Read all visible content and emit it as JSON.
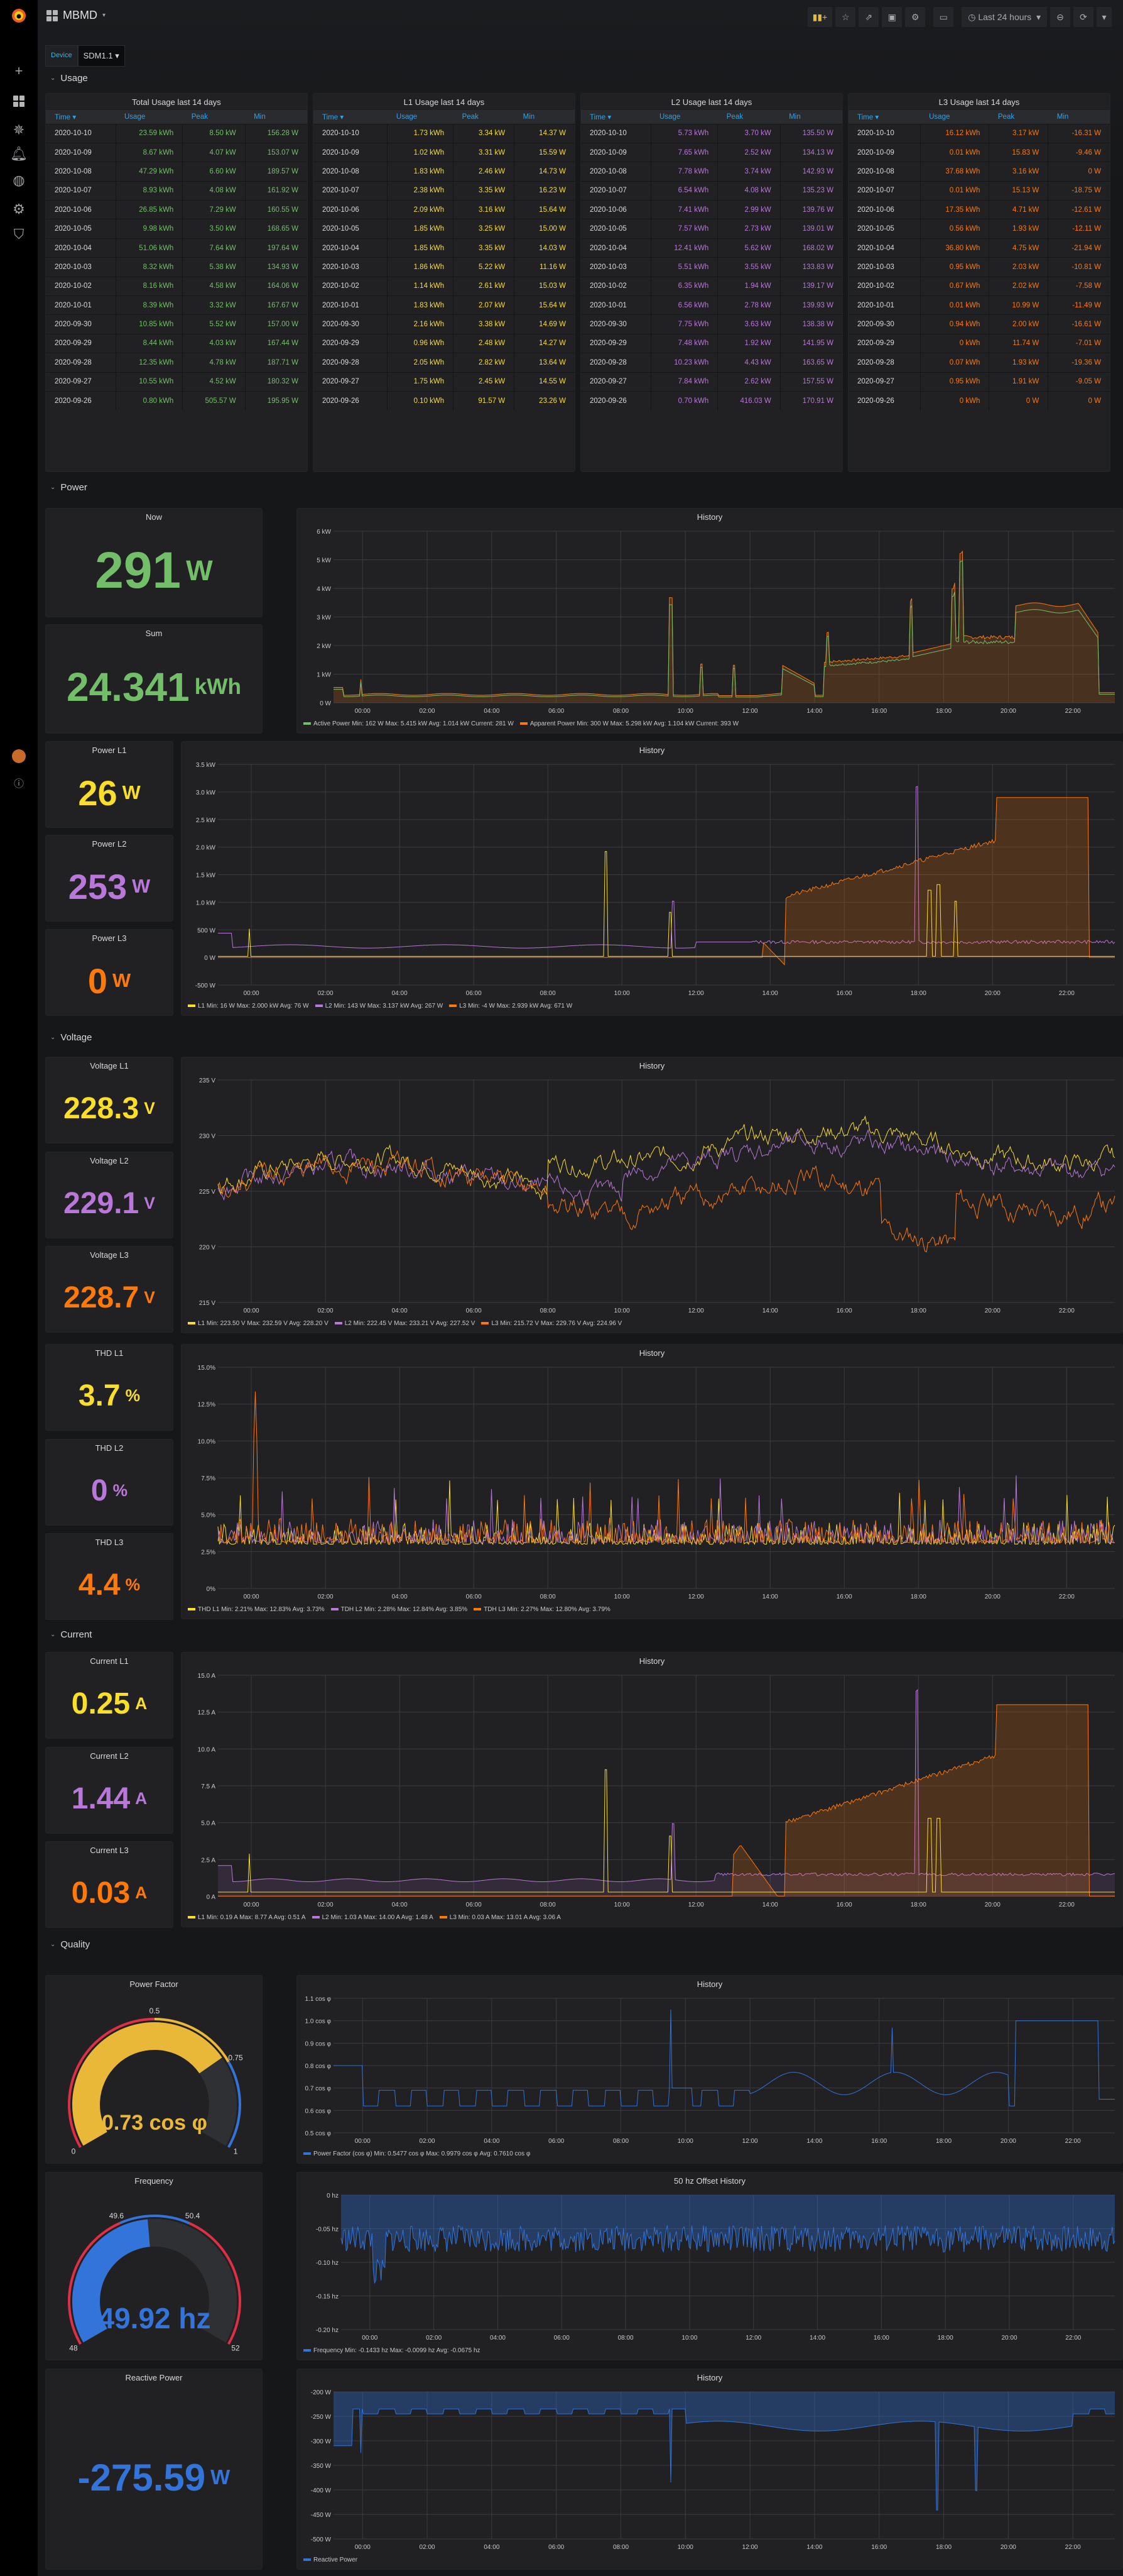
{
  "colors": {
    "green": "#73bf69",
    "yellow": "#fade2a",
    "purple": "#b877d9",
    "orange": "#ff780a",
    "blue": "#3274d9",
    "red": "#e02f44",
    "gauge_yellow": "#eab839"
  },
  "sidebar": {
    "icons": [
      "grafana-logo-icon",
      "plus-icon",
      "dashboards-icon",
      "explore-icon",
      "alert-bell-icon",
      "globe-icon",
      "gear-icon",
      "shield-icon",
      "user-avatar-icon",
      "help-icon"
    ]
  },
  "header": {
    "title": "MBMD",
    "time_range": "Last 24 hours"
  },
  "variables": {
    "device_label": "Device",
    "device_value": "SDM1.1"
  },
  "rows": {
    "usage": "Usage",
    "power": "Power",
    "voltage": "Voltage",
    "current": "Current",
    "quality": "Quality"
  },
  "tables": [
    {
      "title": "Total Usage last 14 days",
      "columns": [
        "Time",
        "Usage",
        "Peak",
        "Min"
      ],
      "rows": [
        [
          "2020-10-10",
          "23.59 kWh",
          "8.50 kW",
          "156.28 W"
        ],
        [
          "2020-10-09",
          "8.67 kWh",
          "4.07 kW",
          "153.07 W"
        ],
        [
          "2020-10-08",
          "47.29 kWh",
          "6.60 kW",
          "189.57 W"
        ],
        [
          "2020-10-07",
          "8.93 kWh",
          "4.08 kW",
          "161.92 W"
        ],
        [
          "2020-10-06",
          "26.85 kWh",
          "7.29 kW",
          "160.55 W"
        ],
        [
          "2020-10-05",
          "9.98 kWh",
          "3.50 kW",
          "168.65 W"
        ],
        [
          "2020-10-04",
          "51.06 kWh",
          "7.64 kW",
          "197.64 W"
        ],
        [
          "2020-10-03",
          "8.32 kWh",
          "5.38 kW",
          "134.93 W"
        ],
        [
          "2020-10-02",
          "8.16 kWh",
          "4.58 kW",
          "164.06 W"
        ],
        [
          "2020-10-01",
          "8.39 kWh",
          "3.32 kW",
          "167.67 W"
        ],
        [
          "2020-09-30",
          "10.85 kWh",
          "5.52 kW",
          "157.00 W"
        ],
        [
          "2020-09-29",
          "8.44 kWh",
          "4.03 kW",
          "167.44 W"
        ],
        [
          "2020-09-28",
          "12.35 kWh",
          "4.78 kW",
          "187.71 W"
        ],
        [
          "2020-09-27",
          "10.55 kWh",
          "4.52 kW",
          "180.32 W"
        ],
        [
          "2020-09-26",
          "0.80 kWh",
          "505.57 W",
          "195.95 W"
        ]
      ]
    },
    {
      "title": "L1 Usage last 14 days",
      "columns": [
        "Time",
        "Usage",
        "Peak",
        "Min"
      ],
      "rows": [
        [
          "2020-10-10",
          "1.73 kWh",
          "3.34 kW",
          "14.37 W"
        ],
        [
          "2020-10-09",
          "1.02 kWh",
          "3.31 kW",
          "15.59 W"
        ],
        [
          "2020-10-08",
          "1.83 kWh",
          "2.46 kW",
          "14.73 W"
        ],
        [
          "2020-10-07",
          "2.38 kWh",
          "3.35 kW",
          "16.23 W"
        ],
        [
          "2020-10-06",
          "2.09 kWh",
          "3.16 kW",
          "15.64 W"
        ],
        [
          "2020-10-05",
          "1.85 kWh",
          "3.25 kW",
          "15.00 W"
        ],
        [
          "2020-10-04",
          "1.85 kWh",
          "3.35 kW",
          "14.03 W"
        ],
        [
          "2020-10-03",
          "1.86 kWh",
          "5.22 kW",
          "11.16 W"
        ],
        [
          "2020-10-02",
          "1.14 kWh",
          "2.61 kW",
          "15.03 W"
        ],
        [
          "2020-10-01",
          "1.83 kWh",
          "2.07 kW",
          "15.64 W"
        ],
        [
          "2020-09-30",
          "2.16 kWh",
          "3.38 kW",
          "14.69 W"
        ],
        [
          "2020-09-29",
          "0.96 kWh",
          "2.48 kW",
          "14.27 W"
        ],
        [
          "2020-09-28",
          "2.05 kWh",
          "2.82 kW",
          "13.64 W"
        ],
        [
          "2020-09-27",
          "1.75 kWh",
          "2.45 kW",
          "14.55 W"
        ],
        [
          "2020-09-26",
          "0.10 kWh",
          "91.57 W",
          "23.26 W"
        ]
      ]
    },
    {
      "title": "L2 Usage last 14 days",
      "columns": [
        "Time",
        "Usage",
        "Peak",
        "Min"
      ],
      "rows": [
        [
          "2020-10-10",
          "5.73 kWh",
          "3.70 kW",
          "135.50 W"
        ],
        [
          "2020-10-09",
          "7.65 kWh",
          "2.52 kW",
          "134.13 W"
        ],
        [
          "2020-10-08",
          "7.78 kWh",
          "3.74 kW",
          "142.93 W"
        ],
        [
          "2020-10-07",
          "6.54 kWh",
          "4.08 kW",
          "135.23 W"
        ],
        [
          "2020-10-06",
          "7.41 kWh",
          "2.99 kW",
          "139.76 W"
        ],
        [
          "2020-10-05",
          "7.57 kWh",
          "2.73 kW",
          "139.01 W"
        ],
        [
          "2020-10-04",
          "12.41 kWh",
          "5.62 kW",
          "168.02 W"
        ],
        [
          "2020-10-03",
          "5.51 kWh",
          "3.55 kW",
          "133.83 W"
        ],
        [
          "2020-10-02",
          "6.35 kWh",
          "1.94 kW",
          "139.17 W"
        ],
        [
          "2020-10-01",
          "6.56 kWh",
          "2.78 kW",
          "139.93 W"
        ],
        [
          "2020-09-30",
          "7.75 kWh",
          "3.63 kW",
          "138.38 W"
        ],
        [
          "2020-09-29",
          "7.48 kWh",
          "1.92 kW",
          "141.95 W"
        ],
        [
          "2020-09-28",
          "10.23 kWh",
          "4.43 kW",
          "163.65 W"
        ],
        [
          "2020-09-27",
          "7.84 kWh",
          "2.62 kW",
          "157.55 W"
        ],
        [
          "2020-09-26",
          "0.70 kWh",
          "416.03 W",
          "170.91 W"
        ]
      ]
    },
    {
      "title": "L3 Usage last 14 days",
      "columns": [
        "Time",
        "Usage",
        "Peak",
        "Min"
      ],
      "rows": [
        [
          "2020-10-10",
          "16.12 kWh",
          "3.17 kW",
          "-16.31 W"
        ],
        [
          "2020-10-09",
          "0.01 kWh",
          "15.83 W",
          "-9.46 W"
        ],
        [
          "2020-10-08",
          "37.68 kWh",
          "3.16 kW",
          "0 W"
        ],
        [
          "2020-10-07",
          "0.01 kWh",
          "15.13 W",
          "-18.75 W"
        ],
        [
          "2020-10-06",
          "17.35 kWh",
          "4.71 kW",
          "-12.61 W"
        ],
        [
          "2020-10-05",
          "0.56 kWh",
          "1.93 kW",
          "-12.11 W"
        ],
        [
          "2020-10-04",
          "36.80 kWh",
          "4.75 kW",
          "-21.94 W"
        ],
        [
          "2020-10-03",
          "0.95 kWh",
          "2.03 kW",
          "-10.81 W"
        ],
        [
          "2020-10-02",
          "0.67 kWh",
          "2.02 kW",
          "-7.58 W"
        ],
        [
          "2020-10-01",
          "0.01 kWh",
          "10.99 W",
          "-11.49 W"
        ],
        [
          "2020-09-30",
          "0.94 kWh",
          "2.00 kW",
          "-16.61 W"
        ],
        [
          "2020-09-29",
          "0 kWh",
          "11.74 W",
          "-7.01 W"
        ],
        [
          "2020-09-28",
          "0.07 kWh",
          "1.93 kW",
          "-19.36 W"
        ],
        [
          "2020-09-27",
          "0.95 kWh",
          "1.91 kW",
          "-9.05 W"
        ],
        [
          "2020-09-26",
          "0 kWh",
          "0 W",
          "0 W"
        ]
      ]
    }
  ],
  "stats": {
    "now": {
      "title": "Now",
      "value": "291",
      "unit": "W"
    },
    "sum": {
      "title": "Sum",
      "value": "24.341",
      "unit": "kWh"
    },
    "power_l1": {
      "title": "Power L1",
      "value": "26",
      "unit": "W"
    },
    "power_l2": {
      "title": "Power L2",
      "value": "253",
      "unit": "W"
    },
    "power_l3": {
      "title": "Power L3",
      "value": "0",
      "unit": "W"
    },
    "voltage_l1": {
      "title": "Voltage L1",
      "value": "228.3",
      "unit": "V"
    },
    "voltage_l2": {
      "title": "Voltage L2",
      "value": "229.1",
      "unit": "V"
    },
    "voltage_l3": {
      "title": "Voltage L3",
      "value": "228.7",
      "unit": "V"
    },
    "thd_l1": {
      "title": "THD L1",
      "value": "3.7",
      "unit": "%"
    },
    "thd_l2": {
      "title": "THD L2",
      "value": "0",
      "unit": "%"
    },
    "thd_l3": {
      "title": "THD L3",
      "value": "4.4",
      "unit": "%"
    },
    "current_l1": {
      "title": "Current L1",
      "value": "0.25",
      "unit": "A"
    },
    "current_l2": {
      "title": "Current L2",
      "value": "1.44",
      "unit": "A"
    },
    "current_l3": {
      "title": "Current L3",
      "value": "0.03",
      "unit": "A"
    },
    "reactive": {
      "title": "Reactive Power",
      "value": "-275.59",
      "unit": "W"
    }
  },
  "gauges": {
    "pf": {
      "title": "Power Factor",
      "value": 0.73,
      "display": "0.73 cos φ",
      "min": 0,
      "max": 1,
      "ticks": [
        "0",
        "0.5",
        "0.75",
        "1"
      ]
    },
    "freq": {
      "title": "Frequency",
      "value": 49.92,
      "display": "49.92 hz",
      "min": 48,
      "max": 52,
      "ticks": [
        "48",
        "49.6",
        "50.4",
        "52"
      ]
    }
  },
  "x_ticks": [
    "00:00",
    "02:00",
    "04:00",
    "06:00",
    "08:00",
    "10:00",
    "12:00",
    "14:00",
    "16:00",
    "18:00",
    "20:00",
    "22:00"
  ],
  "charts": {
    "power_history": {
      "title": "History",
      "yticks": [
        "0 W",
        "1 kW",
        "2 kW",
        "3 kW",
        "4 kW",
        "5 kW",
        "6 kW"
      ],
      "legend": [
        {
          "label": "Active Power  Min: 162 W  Max: 5.415 kW  Avg: 1.014 kW  Current: 281 W",
          "color": "#73bf69"
        },
        {
          "label": "Apparent Power  Min: 300 W  Max: 5.298 kW  Avg: 1.104 kW  Current: 393 W",
          "color": "#ff780a"
        }
      ]
    },
    "phase_power": {
      "title": "History",
      "yticks": [
        "-500 W",
        "0 W",
        "500 W",
        "1.0 kW",
        "1.5 kW",
        "2.0 kW",
        "2.5 kW",
        "3.0 kW",
        "3.5 kW"
      ],
      "legend": [
        {
          "label": "L1  Min: 16 W  Max: 2.000 kW  Avg: 76 W",
          "color": "#fade2a"
        },
        {
          "label": "L2  Min: 143 W  Max: 3.137 kW  Avg: 267 W",
          "color": "#b877d9"
        },
        {
          "label": "L3  Min: -4 W  Max: 2.939 kW  Avg: 671 W",
          "color": "#ff780a"
        }
      ]
    },
    "voltage": {
      "title": "History",
      "yticks": [
        "215 V",
        "220 V",
        "225 V",
        "230 V",
        "235 V"
      ],
      "legend": [
        {
          "label": "L1  Min: 223.50 V  Max: 232.59 V  Avg: 228.20 V",
          "color": "#fade2a"
        },
        {
          "label": "L2  Min: 222.45 V  Max: 233.21 V  Avg: 227.52 V",
          "color": "#b877d9"
        },
        {
          "label": "L3  Min: 215.72 V  Max: 229.76 V  Avg: 224.96 V",
          "color": "#ff780a"
        }
      ]
    },
    "thd": {
      "title": "History",
      "yticks": [
        "0%",
        "2.5%",
        "5.0%",
        "7.5%",
        "10.0%",
        "12.5%",
        "15.0%"
      ],
      "legend": [
        {
          "label": "THD L1  Min: 2.21%  Max: 12.83%  Avg: 3.73%",
          "color": "#fade2a"
        },
        {
          "label": "TDH L2  Min: 2.28%  Max: 12.84%  Avg: 3.85%",
          "color": "#b877d9"
        },
        {
          "label": "TDH L3  Min: 2.27%  Max: 12.80%  Avg: 3.79%",
          "color": "#ff780a"
        }
      ]
    },
    "current": {
      "title": "History",
      "yticks": [
        "0 A",
        "2.5 A",
        "5.0 A",
        "7.5 A",
        "10.0 A",
        "12.5 A",
        "15.0 A"
      ],
      "legend": [
        {
          "label": "L1  Min: 0.19 A  Max: 8.77 A  Avg: 0.51 A",
          "color": "#fade2a"
        },
        {
          "label": "L2  Min: 1.03 A  Max: 14.00 A  Avg: 1.48 A",
          "color": "#b877d9"
        },
        {
          "label": "L3  Min: 0.03 A  Max: 13.01 A  Avg: 3.06 A",
          "color": "#ff780a"
        }
      ]
    },
    "pf": {
      "title": "History",
      "yticks": [
        "0.5 cos φ",
        "0.6 cos φ",
        "0.7 cos φ",
        "0.8 cos φ",
        "0.9 cos φ",
        "1.0 cos φ",
        "1.1 cos φ"
      ],
      "legend": [
        {
          "label": "Power Factor (cos φ)  Min: 0.5477 cos φ  Max: 0.9979 cos φ  Avg: 0.7610 cos φ",
          "color": "#3274d9"
        }
      ]
    },
    "freq": {
      "title": "50 hz Offset History",
      "yticks": [
        "-0.20 hz",
        "-0.15 hz",
        "-0.10 hz",
        "-0.05 hz",
        "0 hz"
      ],
      "legend": [
        {
          "label": "Frequency  Min: -0.1433 hz  Max: -0.0099 hz  Avg: -0.0675 hz",
          "color": "#3274d9"
        }
      ]
    },
    "reactive": {
      "title": "History",
      "yticks": [
        "-500 W",
        "-450 W",
        "-400 W",
        "-350 W",
        "-300 W",
        "-250 W",
        "-200 W"
      ],
      "legend": [
        {
          "label": "Reactive Power",
          "color": "#3274d9"
        }
      ]
    }
  }
}
